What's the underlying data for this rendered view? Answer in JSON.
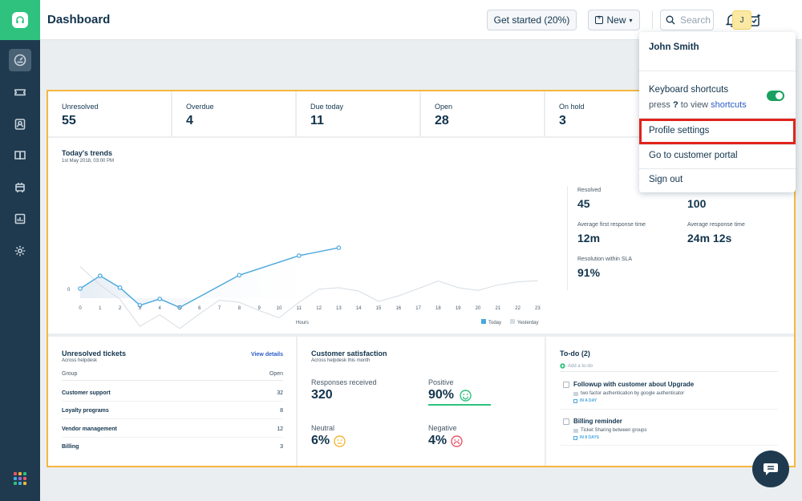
{
  "app": {
    "title": "Dashboard",
    "accent": "#2ec27e",
    "highlight": "#e0231c"
  },
  "sidebar": {
    "items": [
      {
        "name": "dashboard-icon",
        "active": true
      },
      {
        "name": "tickets-icon"
      },
      {
        "name": "contacts-icon"
      },
      {
        "name": "solutions-icon"
      },
      {
        "name": "social-icon"
      },
      {
        "name": "reports-icon"
      },
      {
        "name": "settings-icon"
      }
    ],
    "apps": "apps-grid-icon"
  },
  "topbar": {
    "get_started": "Get started (20%)",
    "new_label": "New",
    "search_placeholder": "Search",
    "avatar_initial": "J"
  },
  "stats": [
    {
      "label": "Unresolved",
      "value": "55"
    },
    {
      "label": "Overdue",
      "value": "4"
    },
    {
      "label": "Due today",
      "value": "11"
    },
    {
      "label": "Open",
      "value": "28"
    },
    {
      "label": "On hold",
      "value": "3"
    }
  ],
  "trends": {
    "title": "Today's trends",
    "date": "1st May 2018, 03:00 PM",
    "x_label": "Hours",
    "legend_today": "Today",
    "legend_yesterday": "Yesterday",
    "y_tick": "0",
    "metrics": [
      {
        "label": "Resolved",
        "value": "45"
      },
      {
        "label": "",
        "value": "100"
      },
      {
        "label": "Average first response time",
        "value": "12m"
      },
      {
        "label": "Average response time",
        "value": "24m 12s"
      },
      {
        "label": "Resolution within SLA",
        "value": "91%"
      }
    ]
  },
  "chart_data": {
    "type": "line",
    "title": "Today's trends",
    "xlabel": "Hours",
    "x": [
      0,
      1,
      2,
      3,
      4,
      5,
      6,
      7,
      8,
      9,
      10,
      11,
      12,
      13,
      14,
      15,
      16,
      17,
      18,
      19,
      20,
      21,
      22,
      23
    ],
    "series": [
      {
        "name": "Today",
        "color": "#4aa8de",
        "x": [
          0,
          1,
          2,
          3,
          4,
          5,
          6,
          7,
          8,
          9,
          10,
          11,
          12,
          13
        ],
        "values": [
          0.0,
          0.42,
          0.03,
          -0.55,
          -0.34,
          -0.62,
          null,
          null,
          0.44,
          null,
          null,
          1.08,
          null,
          1.34
        ]
      },
      {
        "name": "Yesterday",
        "color": "#d6dde3",
        "x": [
          0,
          1,
          2,
          3,
          4,
          5,
          6,
          7,
          8,
          9,
          10,
          11,
          12,
          13,
          14,
          15,
          16,
          17,
          18,
          19,
          20,
          21,
          22,
          23
        ],
        "values": [
          0.72,
          0.12,
          -0.35,
          -1.24,
          -0.86,
          -1.31,
          -0.83,
          -0.38,
          -0.45,
          -0.72,
          -0.96,
          -0.45,
          -0.02,
          0.03,
          -0.08,
          -0.42,
          -0.24,
          0.0,
          0.25,
          0.03,
          -0.06,
          0.12,
          0.22,
          0.26
        ]
      }
    ]
  },
  "unresolved_tickets": {
    "title": "Unresolved tickets",
    "subtitle": "Across helpdesk",
    "view_details": "View details",
    "col_group": "Group",
    "col_open": "Open",
    "rows": [
      {
        "group": "Customer support",
        "open": "32"
      },
      {
        "group": "Loyalty programs",
        "open": "8"
      },
      {
        "group": "Vendor management",
        "open": "12"
      },
      {
        "group": "Billing",
        "open": "3"
      }
    ]
  },
  "satisfaction": {
    "title": "Customer satisfaction",
    "subtitle": "Across helpdesk this month",
    "responses_label": "Responses received",
    "responses_value": "320",
    "positive_label": "Positive",
    "positive_value": "90%",
    "neutral_label": "Neutral",
    "neutral_value": "6%",
    "negative_label": "Negative",
    "negative_value": "4%"
  },
  "todo": {
    "title": "To-do (2)",
    "add_placeholder": "Add a to-do",
    "items": [
      {
        "title": "Followup with customer about Upgrade",
        "detail": "two factor authentication by google authenticator",
        "due": "IN A DAY"
      },
      {
        "title": "Billing reminder",
        "detail": "Ticket Sharing between groups",
        "due": "IN 8 DAYS"
      }
    ]
  },
  "profile_menu": {
    "user": "John Smith",
    "shortcuts_label": "Keyboard shortcuts",
    "shortcuts_hint_prefix": "press",
    "shortcuts_key": "?",
    "shortcuts_hint_mid": "to view",
    "shortcuts_link": "shortcuts",
    "profile_settings": "Profile settings",
    "customer_portal": "Go to customer portal",
    "sign_out": "Sign out"
  }
}
